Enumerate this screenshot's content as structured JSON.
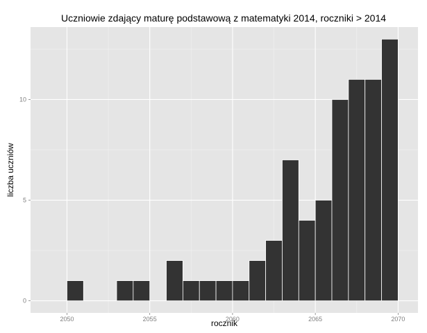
{
  "chart_data": {
    "type": "bar",
    "title": "Uczniowie zdający maturę podstawową z matematyki 2014, roczniki > 2014",
    "xlabel": "rocznik",
    "ylabel": "liczba uczniów",
    "x_ticks": [
      "2050",
      "2055",
      "2060",
      "2065",
      "2070"
    ],
    "y_ticks": [
      "0",
      "5",
      "10"
    ],
    "xlim": [
      2047.8,
      2071.2
    ],
    "ylim": [
      -0.6,
      13.6
    ],
    "grid": true,
    "bins": [
      {
        "start": 2050,
        "end": 2051,
        "count": 1
      },
      {
        "start": 2053,
        "end": 2054,
        "count": 1
      },
      {
        "start": 2054,
        "end": 2055,
        "count": 1
      },
      {
        "start": 2056,
        "end": 2057,
        "count": 2
      },
      {
        "start": 2057,
        "end": 2058,
        "count": 1
      },
      {
        "start": 2058,
        "end": 2059,
        "count": 1
      },
      {
        "start": 2059,
        "end": 2060,
        "count": 1
      },
      {
        "start": 2060,
        "end": 2061,
        "count": 1
      },
      {
        "start": 2061,
        "end": 2062,
        "count": 2
      },
      {
        "start": 2062,
        "end": 2063,
        "count": 3
      },
      {
        "start": 2063,
        "end": 2064,
        "count": 7
      },
      {
        "start": 2064,
        "end": 2065,
        "count": 4
      },
      {
        "start": 2065,
        "end": 2066,
        "count": 5
      },
      {
        "start": 2066,
        "end": 2067,
        "count": 10
      },
      {
        "start": 2067,
        "end": 2068,
        "count": 11
      },
      {
        "start": 2068,
        "end": 2069,
        "count": 11
      },
      {
        "start": 2069,
        "end": 2070,
        "count": 13
      }
    ],
    "colors": {
      "panel": "#e5e5e5",
      "grid_major": "#ffffff",
      "grid_minor": "#f2f2f2",
      "bar_fill": "#333333",
      "bar_stroke": "#ffffff"
    }
  }
}
